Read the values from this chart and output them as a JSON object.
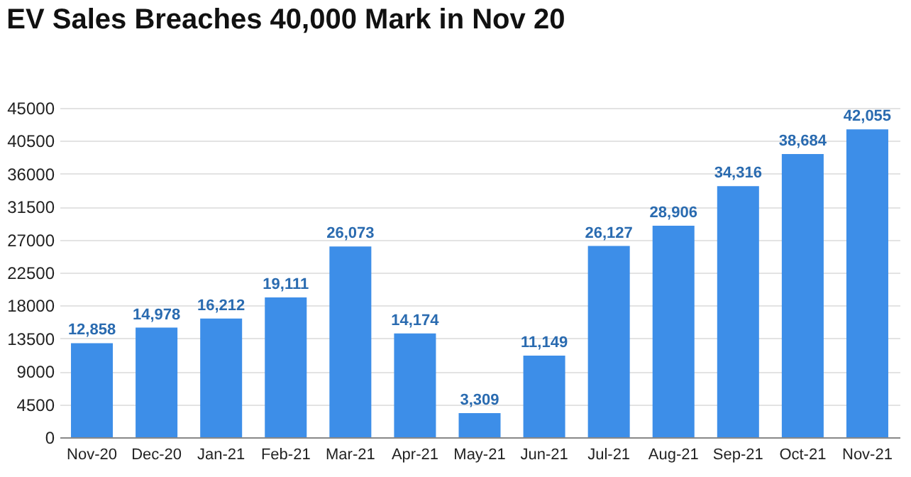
{
  "chart_data": {
    "type": "bar",
    "title": "EV Sales Breaches 40,000 Mark in Nov 20",
    "categories": [
      "Nov-20",
      "Dec-20",
      "Jan-21",
      "Feb-21",
      "Mar-21",
      "Apr-21",
      "May-21",
      "Jun-21",
      "Jul-21",
      "Aug-21",
      "Sep-21",
      "Oct-21",
      "Nov-21"
    ],
    "values": [
      12858,
      14978,
      16212,
      19111,
      26073,
      14174,
      3309,
      11149,
      26127,
      28906,
      34316,
      38684,
      42055
    ],
    "value_labels": [
      "12,858",
      "14,978",
      "16,212",
      "19,111",
      "26,073",
      "14,174",
      "3,309",
      "11,149",
      "26,127",
      "28,906",
      "34,316",
      "38,684",
      "42,055"
    ],
    "color": "#3d8ee8",
    "ylim": [
      0,
      45000
    ],
    "yticks": [
      0,
      4500,
      9000,
      13500,
      18000,
      22500,
      27000,
      31500,
      36000,
      40500,
      45000
    ],
    "grid": "y"
  }
}
